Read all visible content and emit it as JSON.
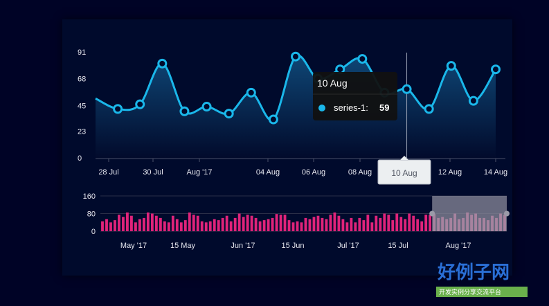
{
  "chart_data": [
    {
      "type": "area",
      "series": [
        {
          "name": "series-1",
          "values": [
            51,
            42,
            46,
            81,
            40,
            44,
            38,
            56,
            33,
            87,
            68,
            76,
            85,
            56,
            59,
            42,
            79,
            49,
            76
          ]
        }
      ],
      "x_tick_labels": [
        "28 Jul",
        "30 Jul",
        "Aug '17",
        "04 Aug",
        "06 Aug",
        "08 Aug",
        "10 Aug",
        "12 Aug",
        "14 Aug"
      ],
      "y_tick_labels": [
        "91",
        "68",
        "45",
        "23",
        "0"
      ],
      "ylim": [
        0,
        91
      ],
      "colors": {
        "line": "#1ab7ea",
        "area_top": "#0f4a7a",
        "area_bottom": "#020b2c",
        "point_fill": "#000a2c"
      },
      "tooltip": {
        "title": "10 Aug",
        "series_label": "series-1:",
        "value": "59",
        "x_label": "10 Aug"
      }
    },
    {
      "type": "bar",
      "values": [
        45,
        55,
        40,
        50,
        75,
        65,
        85,
        70,
        40,
        55,
        60,
        85,
        80,
        70,
        60,
        45,
        40,
        70,
        55,
        40,
        50,
        85,
        75,
        70,
        45,
        40,
        45,
        55,
        50,
        60,
        70,
        45,
        60,
        80,
        65,
        75,
        70,
        60,
        45,
        50,
        55,
        60,
        78,
        75,
        75,
        50,
        40,
        45,
        40,
        60,
        55,
        65,
        70,
        60,
        55,
        75,
        85,
        70,
        55,
        40,
        60,
        40,
        60,
        50,
        75,
        40,
        70,
        60,
        80,
        75,
        50,
        80,
        65,
        55,
        80,
        70,
        55,
        45,
        75,
        75,
        78,
        60,
        65,
        55,
        60,
        80,
        55,
        60,
        85,
        75,
        80,
        60,
        60,
        50,
        70,
        60,
        80,
        75
      ],
      "x_tick_labels": [
        "May '17",
        "15 May",
        "Jun '17",
        "15 Jun",
        "Jul '17",
        "15 Jul",
        "Aug '17"
      ],
      "y_tick_labels": [
        "160",
        "80",
        "0"
      ],
      "ylim": [
        0,
        160
      ],
      "selection": {
        "from": "Aug '17 (start)",
        "to": "14 Aug"
      },
      "colors": {
        "bar": "#e0237a",
        "bar_selected": "#ff6fae",
        "selection": "#8a8a9a"
      }
    }
  ],
  "watermark": {
    "title": "好例子网",
    "subtitle": "开发实例分享交流平台"
  }
}
